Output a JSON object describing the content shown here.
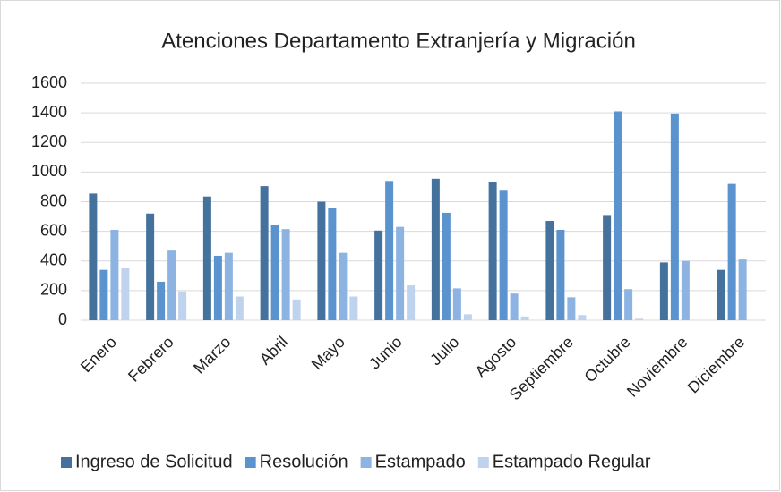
{
  "chart_data": {
    "type": "bar",
    "title": "Atenciones Departamento Extranjería y Migración",
    "categories": [
      "Enero",
      "Febrero",
      "Marzo",
      "Abril",
      "Mayo",
      "Junio",
      "Julio",
      "Agosto",
      "Septiembre",
      "Octubre",
      "Noviembre",
      "Diciembre"
    ],
    "series": [
      {
        "name": "Ingreso de Solicitud",
        "color": "#44729d",
        "values": [
          855,
          720,
          835,
          905,
          800,
          605,
          955,
          935,
          670,
          710,
          390,
          340
        ]
      },
      {
        "name": "Resolución",
        "color": "#5b93cf",
        "values": [
          340,
          260,
          435,
          640,
          755,
          940,
          725,
          880,
          610,
          1410,
          1395,
          920
        ]
      },
      {
        "name": "Estampado",
        "color": "#8db3e2",
        "values": [
          610,
          470,
          455,
          615,
          455,
          630,
          215,
          180,
          155,
          210,
          400,
          410
        ]
      },
      {
        "name": "Estampado Regular",
        "color": "#c0d3ee",
        "values": [
          350,
          195,
          160,
          140,
          160,
          235,
          40,
          25,
          35,
          10,
          0,
          0
        ]
      }
    ],
    "ylim": [
      0,
      1600
    ],
    "yticks": [
      0,
      200,
      400,
      600,
      800,
      1000,
      1200,
      1400,
      1600
    ],
    "grid": true,
    "legend": "bottom"
  }
}
